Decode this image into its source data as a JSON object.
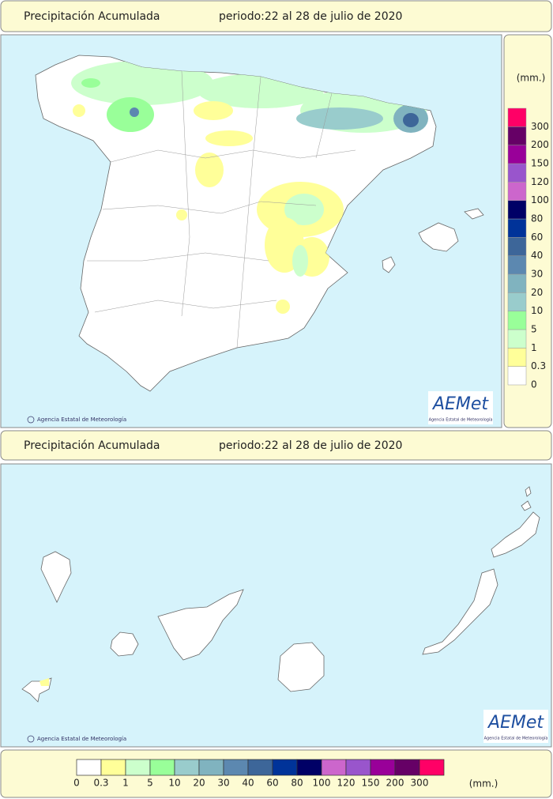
{
  "panels": [
    {
      "title": "Precipitación Acumulada",
      "period": "periodo:22 al 28 de julio de 2020",
      "attribution": "Agencia Estatal de Meteorología",
      "logo": "AEMet",
      "logo_subtitle": "Agencia Estatal de Meteorología"
    },
    {
      "title": "Precipitación Acumulada",
      "period": "periodo:22 al 28 de julio de 2020",
      "attribution": "Agencia Estatal de Meteorología",
      "logo": "AEMet",
      "logo_subtitle": "Agencia Estatal de Meteorología"
    }
  ],
  "legend": {
    "unit": "(mm.)",
    "items": [
      {
        "label": "0",
        "color": "#ffffff"
      },
      {
        "label": "0.3",
        "color": "#ffff99"
      },
      {
        "label": "1",
        "color": "#ccffcc"
      },
      {
        "label": "5",
        "color": "#99ff99"
      },
      {
        "label": "10",
        "color": "#99cccc"
      },
      {
        "label": "20",
        "color": "#80b3bf"
      },
      {
        "label": "30",
        "color": "#5c88b0"
      },
      {
        "label": "40",
        "color": "#3d6699"
      },
      {
        "label": "60",
        "color": "#003399"
      },
      {
        "label": "80",
        "color": "#000066"
      },
      {
        "label": "100",
        "color": "#cc66cc"
      },
      {
        "label": "120",
        "color": "#9955cc"
      },
      {
        "label": "150",
        "color": "#990099"
      },
      {
        "label": "200",
        "color": "#660066"
      },
      {
        "label": "300",
        "color": "#ff0066"
      }
    ]
  }
}
